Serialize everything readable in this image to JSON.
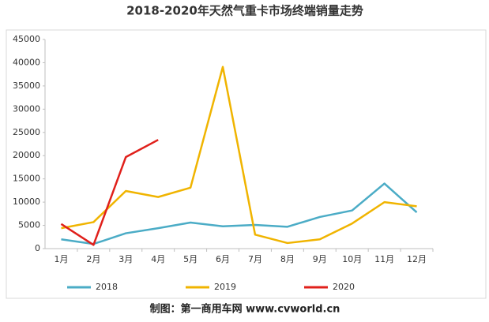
{
  "chart_data": {
    "type": "line",
    "title": "2018-2020年天然气重卡市场终端销量走势",
    "categories": [
      "1月",
      "2月",
      "3月",
      "4月",
      "5月",
      "6月",
      "7月",
      "8月",
      "9月",
      "10月",
      "11月",
      "12月"
    ],
    "series": [
      {
        "name": "2018",
        "color": "#4bacc6",
        "values": [
          2000,
          1000,
          3300,
          4400,
          5600,
          4800,
          5100,
          4700,
          6800,
          8200,
          14000,
          7800
        ]
      },
      {
        "name": "2019",
        "color": "#f0b400",
        "values": [
          4400,
          5700,
          12400,
          11100,
          13100,
          39100,
          3000,
          1200,
          2000,
          5400,
          10000,
          9100
        ]
      },
      {
        "name": "2020",
        "color": "#e0201b",
        "values": [
          5300,
          800,
          19700,
          23400,
          null,
          null,
          null,
          null,
          null,
          null,
          null,
          null
        ]
      }
    ],
    "ylim": [
      0,
      45000
    ],
    "yticks": [
      0,
      5000,
      10000,
      15000,
      20000,
      25000,
      30000,
      35000,
      40000,
      45000
    ],
    "grid": false,
    "legend": "bottom"
  },
  "footer": "制图：第一商用车网 www.cvworld.cn"
}
